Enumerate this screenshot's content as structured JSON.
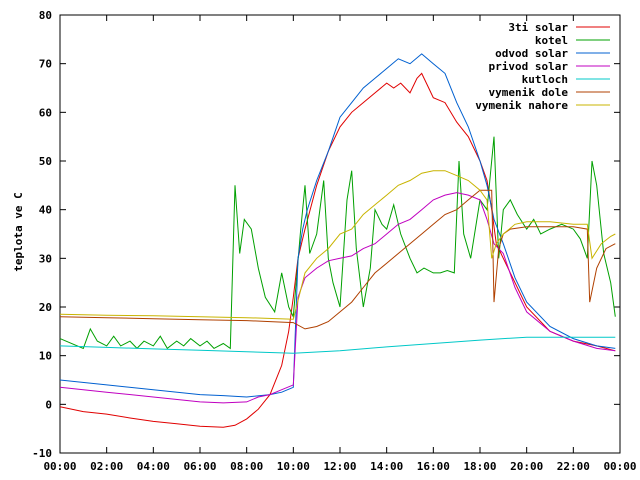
{
  "chart_data": {
    "type": "line",
    "title": "",
    "xlabel": "",
    "ylabel": "teplota ve C",
    "xlim": [
      0,
      24
    ],
    "ylim": [
      -10,
      80
    ],
    "x_ticks": [
      "00:00",
      "02:00",
      "04:00",
      "06:00",
      "08:00",
      "10:00",
      "12:00",
      "14:00",
      "16:00",
      "18:00",
      "20:00",
      "22:00",
      "00:00"
    ],
    "y_ticks": [
      "-10",
      "0",
      "10",
      "20",
      "30",
      "40",
      "50",
      "60",
      "70",
      "80"
    ],
    "grid": false,
    "legend_position": "top-right",
    "x_unit": "hours",
    "series": [
      {
        "name": "3ti solar",
        "color": "#e00000",
        "points": [
          [
            0,
            -0.5
          ],
          [
            1,
            -1.5
          ],
          [
            2,
            -2
          ],
          [
            3,
            -2.8
          ],
          [
            4,
            -3.5
          ],
          [
            5,
            -4
          ],
          [
            6,
            -4.5
          ],
          [
            7,
            -4.7
          ],
          [
            7.5,
            -4.3
          ],
          [
            8,
            -3
          ],
          [
            8.5,
            -1
          ],
          [
            9,
            2
          ],
          [
            9.5,
            8
          ],
          [
            9.8,
            15
          ],
          [
            10,
            22
          ],
          [
            10.2,
            30
          ],
          [
            10.5,
            36
          ],
          [
            11,
            45
          ],
          [
            11.5,
            52
          ],
          [
            12,
            57
          ],
          [
            12.5,
            60
          ],
          [
            13,
            62
          ],
          [
            13.5,
            64
          ],
          [
            14,
            66
          ],
          [
            14.3,
            65
          ],
          [
            14.6,
            66
          ],
          [
            15,
            64
          ],
          [
            15.3,
            67
          ],
          [
            15.5,
            68
          ],
          [
            15.8,
            65
          ],
          [
            16,
            63
          ],
          [
            16.5,
            62
          ],
          [
            17,
            58
          ],
          [
            17.5,
            55
          ],
          [
            18,
            50
          ],
          [
            18.3,
            46
          ],
          [
            18.5,
            40
          ],
          [
            18.7,
            33
          ],
          [
            19,
            30
          ],
          [
            19.5,
            25
          ],
          [
            20,
            20
          ],
          [
            21,
            15
          ],
          [
            22,
            13
          ],
          [
            23,
            12
          ],
          [
            23.8,
            11
          ]
        ]
      },
      {
        "name": "kotel",
        "color": "#00a000",
        "points": [
          [
            0,
            13.5
          ],
          [
            1,
            11.5
          ],
          [
            1.3,
            15.5
          ],
          [
            1.6,
            13
          ],
          [
            2,
            12
          ],
          [
            2.3,
            14
          ],
          [
            2.6,
            12
          ],
          [
            3,
            13
          ],
          [
            3.3,
            11.5
          ],
          [
            3.6,
            13
          ],
          [
            4,
            12
          ],
          [
            4.3,
            14
          ],
          [
            4.6,
            11.5
          ],
          [
            5,
            13
          ],
          [
            5.3,
            12
          ],
          [
            5.6,
            13.5
          ],
          [
            6,
            12
          ],
          [
            6.3,
            13
          ],
          [
            6.6,
            11.5
          ],
          [
            7,
            12.5
          ],
          [
            7.3,
            11.5
          ],
          [
            7.5,
            45
          ],
          [
            7.7,
            31
          ],
          [
            7.9,
            38
          ],
          [
            8.2,
            36
          ],
          [
            8.5,
            28
          ],
          [
            8.8,
            22
          ],
          [
            9.2,
            19
          ],
          [
            9.5,
            27
          ],
          [
            9.8,
            20
          ],
          [
            10,
            18
          ],
          [
            10.3,
            35
          ],
          [
            10.5,
            45
          ],
          [
            10.7,
            31
          ],
          [
            11,
            35
          ],
          [
            11.3,
            46
          ],
          [
            11.5,
            30
          ],
          [
            11.7,
            25
          ],
          [
            12,
            20
          ],
          [
            12.3,
            42
          ],
          [
            12.5,
            48
          ],
          [
            12.7,
            32
          ],
          [
            13,
            20
          ],
          [
            13.3,
            28
          ],
          [
            13.5,
            40
          ],
          [
            13.8,
            37
          ],
          [
            14,
            36
          ],
          [
            14.3,
            41
          ],
          [
            14.6,
            35
          ],
          [
            15,
            30
          ],
          [
            15.3,
            27
          ],
          [
            15.6,
            28
          ],
          [
            16,
            27
          ],
          [
            16.3,
            27
          ],
          [
            16.6,
            27.5
          ],
          [
            16.9,
            27
          ],
          [
            17.1,
            50
          ],
          [
            17.3,
            35
          ],
          [
            17.6,
            30
          ],
          [
            18,
            42
          ],
          [
            18.3,
            40
          ],
          [
            18.6,
            55
          ],
          [
            18.8,
            30
          ],
          [
            19,
            40
          ],
          [
            19.3,
            42
          ],
          [
            19.6,
            39
          ],
          [
            20,
            36
          ],
          [
            20.3,
            38
          ],
          [
            20.6,
            35
          ],
          [
            21,
            36
          ],
          [
            21.5,
            37
          ],
          [
            22,
            36
          ],
          [
            22.3,
            34
          ],
          [
            22.6,
            30
          ],
          [
            22.8,
            50
          ],
          [
            23,
            45
          ],
          [
            23.3,
            31
          ],
          [
            23.6,
            25
          ],
          [
            23.8,
            18
          ]
        ]
      },
      {
        "name": "odvod solar",
        "color": "#0060d0",
        "points": [
          [
            0,
            5
          ],
          [
            2,
            4
          ],
          [
            4,
            3
          ],
          [
            6,
            2
          ],
          [
            7,
            1.8
          ],
          [
            8,
            1.5
          ],
          [
            9,
            2
          ],
          [
            9.5,
            2.5
          ],
          [
            10,
            3.5
          ],
          [
            10.2,
            30
          ],
          [
            10.4,
            36
          ],
          [
            10.6,
            40
          ],
          [
            11,
            46
          ],
          [
            11.5,
            52
          ],
          [
            12,
            59
          ],
          [
            12.5,
            62
          ],
          [
            13,
            65
          ],
          [
            13.5,
            67
          ],
          [
            14,
            69
          ],
          [
            14.5,
            71
          ],
          [
            15,
            70
          ],
          [
            15.5,
            72
          ],
          [
            16,
            70
          ],
          [
            16.5,
            68
          ],
          [
            17,
            62
          ],
          [
            17.5,
            57
          ],
          [
            18,
            50
          ],
          [
            18.3,
            45
          ],
          [
            18.6,
            38
          ],
          [
            19,
            33
          ],
          [
            19.5,
            26
          ],
          [
            20,
            21
          ],
          [
            21,
            16
          ],
          [
            22,
            13.5
          ],
          [
            23,
            12
          ],
          [
            23.8,
            11.5
          ]
        ]
      },
      {
        "name": "privod solar",
        "color": "#c000c0",
        "points": [
          [
            0,
            3.5
          ],
          [
            2,
            2.5
          ],
          [
            4,
            1.5
          ],
          [
            6,
            0.5
          ],
          [
            7,
            0.3
          ],
          [
            8,
            0.5
          ],
          [
            8.5,
            1.5
          ],
          [
            9,
            2
          ],
          [
            9.5,
            3
          ],
          [
            10,
            4
          ],
          [
            10.2,
            22
          ],
          [
            10.5,
            26
          ],
          [
            11,
            28
          ],
          [
            11.5,
            29.5
          ],
          [
            12,
            30
          ],
          [
            12.5,
            30.5
          ],
          [
            13,
            32
          ],
          [
            13.5,
            33
          ],
          [
            14,
            35
          ],
          [
            14.5,
            37
          ],
          [
            15,
            38
          ],
          [
            15.5,
            40
          ],
          [
            16,
            42
          ],
          [
            16.5,
            43
          ],
          [
            17,
            43.5
          ],
          [
            17.5,
            43
          ],
          [
            18,
            42
          ],
          [
            18.3,
            38
          ],
          [
            18.6,
            33
          ],
          [
            19,
            31
          ],
          [
            19.5,
            24
          ],
          [
            20,
            19
          ],
          [
            21,
            15
          ],
          [
            22,
            13
          ],
          [
            23,
            11.5
          ],
          [
            23.8,
            11
          ]
        ]
      },
      {
        "name": "kutloch",
        "color": "#00c8c8",
        "points": [
          [
            0,
            12
          ],
          [
            2,
            11.7
          ],
          [
            4,
            11.4
          ],
          [
            6,
            11.1
          ],
          [
            8,
            10.8
          ],
          [
            10,
            10.5
          ],
          [
            12,
            11
          ],
          [
            14,
            11.8
          ],
          [
            16,
            12.5
          ],
          [
            18,
            13.2
          ],
          [
            20,
            13.8
          ],
          [
            22,
            13.8
          ],
          [
            23.8,
            13.8
          ]
        ]
      },
      {
        "name": "vymenik dole",
        "color": "#b04000",
        "points": [
          [
            0,
            18
          ],
          [
            2,
            17.8
          ],
          [
            4,
            17.6
          ],
          [
            6,
            17.4
          ],
          [
            8,
            17.2
          ],
          [
            9,
            17
          ],
          [
            10,
            16.8
          ],
          [
            10.5,
            15.5
          ],
          [
            11,
            16
          ],
          [
            11.5,
            17
          ],
          [
            12,
            19
          ],
          [
            12.5,
            21
          ],
          [
            13,
            24
          ],
          [
            13.5,
            27
          ],
          [
            14,
            29
          ],
          [
            14.5,
            31
          ],
          [
            15,
            33
          ],
          [
            15.5,
            35
          ],
          [
            16,
            37
          ],
          [
            16.5,
            39
          ],
          [
            17,
            40
          ],
          [
            17.5,
            42
          ],
          [
            18,
            44
          ],
          [
            18.3,
            44
          ],
          [
            18.5,
            44
          ],
          [
            18.6,
            21
          ],
          [
            18.8,
            32
          ],
          [
            19,
            35
          ],
          [
            19.3,
            36
          ],
          [
            20,
            36.5
          ],
          [
            21,
            36.5
          ],
          [
            22,
            36.5
          ],
          [
            22.6,
            36
          ],
          [
            22.7,
            21
          ],
          [
            23,
            28
          ],
          [
            23.4,
            32
          ],
          [
            23.8,
            33
          ]
        ]
      },
      {
        "name": "vymenik nahore",
        "color": "#c8b400",
        "points": [
          [
            0,
            18.5
          ],
          [
            2,
            18.3
          ],
          [
            4,
            18.2
          ],
          [
            6,
            18
          ],
          [
            8,
            17.8
          ],
          [
            10,
            17.5
          ],
          [
            10.5,
            27
          ],
          [
            11,
            30
          ],
          [
            11.5,
            32
          ],
          [
            12,
            35
          ],
          [
            12.5,
            36
          ],
          [
            13,
            39
          ],
          [
            13.5,
            41
          ],
          [
            14,
            43
          ],
          [
            14.5,
            45
          ],
          [
            15,
            46
          ],
          [
            15.5,
            47.5
          ],
          [
            16,
            48
          ],
          [
            16.5,
            48
          ],
          [
            17,
            47
          ],
          [
            17.5,
            46
          ],
          [
            18,
            44
          ],
          [
            18.3,
            42
          ],
          [
            18.5,
            30
          ],
          [
            18.7,
            33
          ],
          [
            19,
            35
          ],
          [
            19.5,
            37
          ],
          [
            20,
            37.5
          ],
          [
            21,
            37.5
          ],
          [
            22,
            37
          ],
          [
            22.6,
            37
          ],
          [
            22.8,
            30
          ],
          [
            23.2,
            33
          ],
          [
            23.6,
            34.5
          ],
          [
            23.8,
            35
          ]
        ]
      }
    ]
  }
}
